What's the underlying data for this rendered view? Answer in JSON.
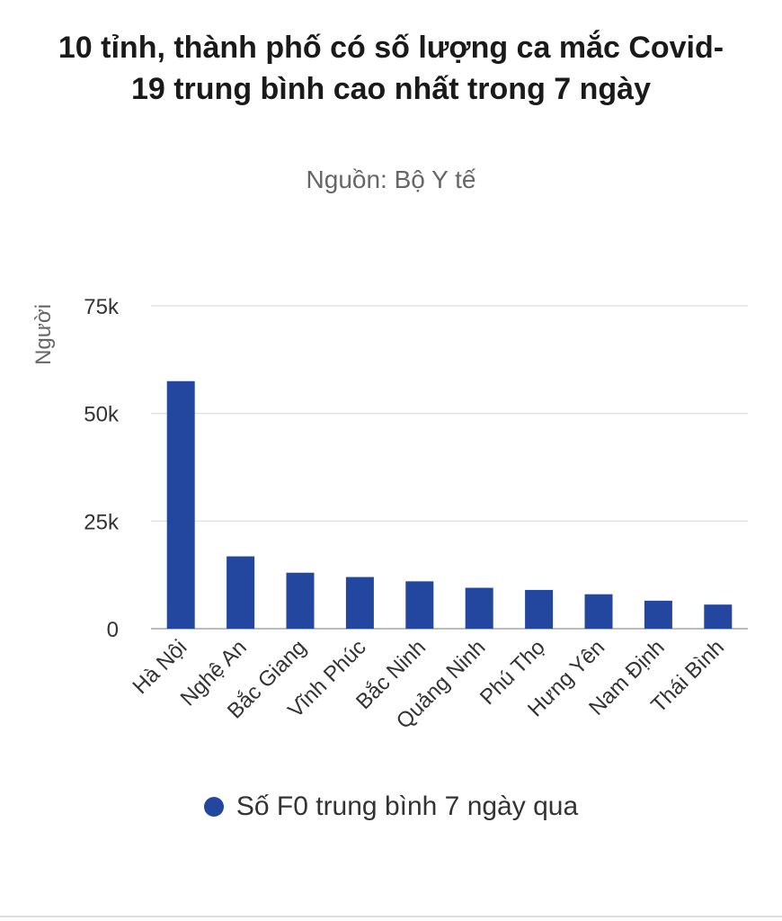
{
  "chart_data": {
    "type": "bar",
    "title": "10 tỉnh, thành phố có số lượng ca mắc Covid-19 trung bình cao nhất trong 7 ngày",
    "subtitle": "Nguồn: Bộ Y tế",
    "ylabel": "Người",
    "xlabel": "",
    "ylim": [
      0,
      75000
    ],
    "yticks": [
      0,
      25000,
      50000,
      75000
    ],
    "ytick_labels": [
      "0",
      "25k",
      "50k",
      "75k"
    ],
    "categories": [
      "Hà Nội",
      "Nghệ An",
      "Bắc Giang",
      "Vĩnh Phúc",
      "Bắc Ninh",
      "Quảng Ninh",
      "Phú Thọ",
      "Hưng Yên",
      "Nam Định",
      "Thái Bình"
    ],
    "series": [
      {
        "name": "Số F0 trung bình 7 ngày qua",
        "color": "#23479e",
        "values": [
          57500,
          16800,
          13000,
          12000,
          11000,
          9500,
          9000,
          8000,
          6500,
          5600
        ]
      }
    ],
    "grid": true,
    "legend": "bottom-center"
  }
}
